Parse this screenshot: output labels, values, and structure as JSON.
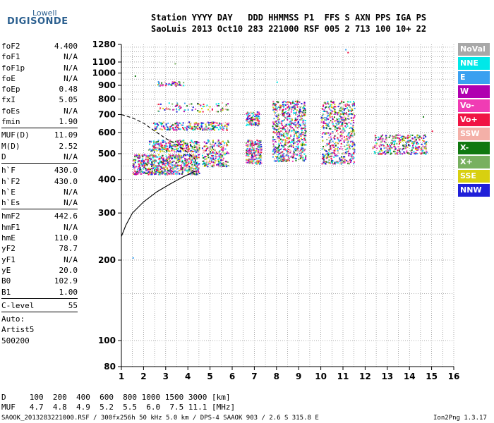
{
  "logo": {
    "top": "Lowell",
    "bottom": "DIGISONDE"
  },
  "header": {
    "labels": "Station YYYY DAY   DDD HHMMSS P1  FFS S AXN PPS IGA PS",
    "values": "SaoLuis 2013 Oct10 283 221000 RSF 005 2 713 100 10+ 22"
  },
  "params": {
    "group1": [
      {
        "k": "foF2",
        "v": "4.400"
      },
      {
        "k": "foF1",
        "v": "N/A"
      },
      {
        "k": "foF1p",
        "v": "N/A"
      },
      {
        "k": "foE",
        "v": "N/A"
      },
      {
        "k": "foEp",
        "v": "0.48"
      },
      {
        "k": "fxI",
        "v": "5.05"
      },
      {
        "k": "foEs",
        "v": "N/A"
      },
      {
        "k": "fmin",
        "v": "1.90"
      }
    ],
    "group2": [
      {
        "k": "MUF(D)",
        "v": "11.09"
      },
      {
        "k": "M(D)",
        "v": "2.52"
      },
      {
        "k": "D",
        "v": "N/A"
      }
    ],
    "group3": [
      {
        "k": "h`F",
        "v": "430.0"
      },
      {
        "k": "h`F2",
        "v": "430.0"
      },
      {
        "k": "h`E",
        "v": "N/A"
      },
      {
        "k": "h`Es",
        "v": "N/A"
      }
    ],
    "group4": [
      {
        "k": "hmF2",
        "v": "442.6"
      },
      {
        "k": "hmF1",
        "v": "N/A"
      },
      {
        "k": "hmE",
        "v": "110.0"
      },
      {
        "k": "yF2",
        "v": "78.7"
      },
      {
        "k": "yF1",
        "v": "N/A"
      },
      {
        "k": "yE",
        "v": "20.0"
      },
      {
        "k": "B0",
        "v": "102.9"
      },
      {
        "k": "B1",
        "v": "1.00"
      }
    ],
    "clevel": {
      "k": "C-level",
      "v": "55"
    },
    "auto": [
      "Auto:",
      "Artist5",
      "500200"
    ]
  },
  "legend": [
    {
      "label": "NoVal",
      "color": "#a8a8a8"
    },
    {
      "label": "NNE",
      "color": "#00e8e8"
    },
    {
      "label": "E",
      "color": "#3aa0f0"
    },
    {
      "label": "W",
      "color": "#b000b0"
    },
    {
      "label": "Vo-",
      "color": "#f03cb4"
    },
    {
      "label": "Vo+",
      "color": "#f01444"
    },
    {
      "label": "SSW",
      "color": "#f4b0a8"
    },
    {
      "label": "X-",
      "color": "#107810"
    },
    {
      "label": "X+",
      "color": "#78b060"
    },
    {
      "label": "SSE",
      "color": "#d8d010"
    },
    {
      "label": "NNW",
      "color": "#2020d8"
    }
  ],
  "footer": {
    "dist": "D     100  200  400  600  800 1000 1500 3000 [km]",
    "muf": "MUF   4.7  4.8  4.9  5.2  5.5  6.0  7.5 11.1 [MHz]",
    "info": "SAOOK_2013283221000.RSF / 300fx256h 50 kHz 5.0 km / DPS-4 SAAOK 903 / 2.6 S 315.8 E",
    "version": "Ion2Png 1.3.17"
  },
  "chart_data": {
    "type": "scatter",
    "xlabel": "",
    "ylabel": "",
    "xlim": [
      1,
      16
    ],
    "ylim": [
      80,
      1280
    ],
    "y_scale": "log",
    "x_ticks": [
      1,
      2,
      3,
      4,
      5,
      6,
      7,
      8,
      9,
      10,
      11,
      12,
      13,
      14,
      15,
      16
    ],
    "y_ticks": [
      80,
      100,
      200,
      300,
      400,
      500,
      600,
      700,
      800,
      900,
      1000,
      1100,
      1280
    ],
    "grid": true,
    "clusters": [
      {
        "x": [
          1.5,
          4.5
        ],
        "y": [
          420,
          500
        ],
        "n": 700
      },
      {
        "x": [
          2.2,
          4.5
        ],
        "y": [
          510,
          565
        ],
        "n": 260
      },
      {
        "x": [
          2.4,
          5.8
        ],
        "y": [
          615,
          660
        ],
        "n": 220
      },
      {
        "x": [
          4.6,
          5.8
        ],
        "y": [
          450,
          565
        ],
        "n": 220
      },
      {
        "x": [
          6.6,
          7.3
        ],
        "y": [
          460,
          565
        ],
        "n": 220
      },
      {
        "x": [
          6.6,
          7.2
        ],
        "y": [
          640,
          720
        ],
        "n": 110
      },
      {
        "x": [
          7.8,
          9.3
        ],
        "y": [
          470,
          790
        ],
        "n": 650
      },
      {
        "x": [
          10.0,
          11.5
        ],
        "y": [
          460,
          790
        ],
        "n": 560
      },
      {
        "x": [
          12.3,
          14.8
        ],
        "y": [
          500,
          590
        ],
        "n": 320
      },
      {
        "x": [
          2.6,
          3.8
        ],
        "y": [
          900,
          935
        ],
        "n": 45
      },
      {
        "x": [
          2.6,
          5.8
        ],
        "y": [
          720,
          780
        ],
        "n": 80
      }
    ],
    "traces": [
      {
        "style": "solid",
        "points": [
          [
            1.0,
            245
          ],
          [
            1.2,
            270
          ],
          [
            1.5,
            300
          ],
          [
            2.0,
            330
          ],
          [
            2.6,
            360
          ],
          [
            3.2,
            385
          ],
          [
            3.8,
            410
          ],
          [
            4.2,
            425
          ],
          [
            4.4,
            432
          ]
        ]
      },
      {
        "style": "dashed",
        "points": [
          [
            1.0,
            700
          ],
          [
            1.5,
            680
          ],
          [
            2.0,
            650
          ],
          [
            2.6,
            600
          ],
          [
            3.0,
            570
          ],
          [
            3.5,
            540
          ],
          [
            4.0,
            505
          ],
          [
            4.3,
            480
          ],
          [
            4.4,
            460
          ]
        ]
      }
    ]
  }
}
